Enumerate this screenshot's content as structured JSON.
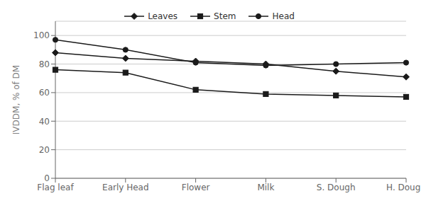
{
  "chart_data": {
    "type": "line",
    "categories": [
      "Flag leaf",
      "Early Head",
      "Flower",
      "Milk",
      "S. Dough",
      "H. Dough"
    ],
    "series": [
      {
        "name": "Leaves",
        "color": "#1a1a1a",
        "marker": "diamond",
        "values": [
          88,
          84,
          82,
          80,
          75,
          71
        ]
      },
      {
        "name": "Stem",
        "color": "#1a1a1a",
        "marker": "square",
        "values": [
          76,
          74,
          62,
          59,
          58,
          57
        ]
      },
      {
        "name": "Head",
        "color": "#1a1a1a",
        "marker": "circle",
        "values": [
          97,
          90,
          81,
          79,
          80,
          81
        ]
      }
    ],
    "ylabel": "IVDDM, % of DM",
    "ylim": [
      0,
      110
    ],
    "yticks": [
      0,
      20,
      40,
      60,
      80,
      100
    ],
    "grid": true,
    "legend": "top"
  }
}
